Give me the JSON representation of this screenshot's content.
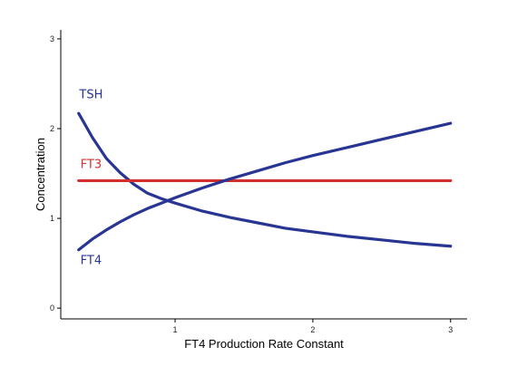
{
  "chart_data": {
    "type": "line",
    "title": "",
    "xlabel": "FT4 Production Rate Constant",
    "ylabel": "Concentration",
    "xlim": [
      0.17,
      3.12
    ],
    "ylim": [
      -0.12,
      3.1
    ],
    "xticks": [
      1,
      2,
      3
    ],
    "yticks": [
      0,
      1,
      2,
      3
    ],
    "grid": false,
    "legend": "none (series labeled directly on plot)",
    "series": [
      {
        "name": "TSH",
        "color": "#283593",
        "x": [
          0.3,
          0.4,
          0.5,
          0.6,
          0.7,
          0.8,
          0.9,
          1.0,
          1.2,
          1.4,
          1.6,
          1.8,
          2.0,
          2.25,
          2.5,
          2.75,
          3.0
        ],
        "y": [
          2.17,
          1.9,
          1.67,
          1.51,
          1.38,
          1.28,
          1.22,
          1.17,
          1.08,
          1.01,
          0.95,
          0.89,
          0.85,
          0.8,
          0.76,
          0.72,
          0.69
        ]
      },
      {
        "name": "FT3",
        "color": "#d32f2f",
        "x": [
          0.3,
          3.0
        ],
        "y": [
          1.42,
          1.42
        ]
      },
      {
        "name": "FT4",
        "color": "#283593",
        "x": [
          0.3,
          0.4,
          0.5,
          0.6,
          0.7,
          0.8,
          0.9,
          1.0,
          1.2,
          1.4,
          1.6,
          1.8,
          2.0,
          2.25,
          2.5,
          2.75,
          3.0
        ],
        "y": [
          0.65,
          0.77,
          0.87,
          0.96,
          1.04,
          1.11,
          1.17,
          1.23,
          1.34,
          1.44,
          1.53,
          1.62,
          1.7,
          1.79,
          1.88,
          1.97,
          2.06
        ]
      }
    ],
    "labels": [
      {
        "text": "TSH",
        "color": "#283593",
        "x": 0.39,
        "y": 2.34
      },
      {
        "text": "FT3",
        "color": "#d32f2f",
        "x": 0.39,
        "y": 1.56
      },
      {
        "text": "FT4",
        "color": "#283593",
        "x": 0.39,
        "y": 0.49
      }
    ]
  }
}
